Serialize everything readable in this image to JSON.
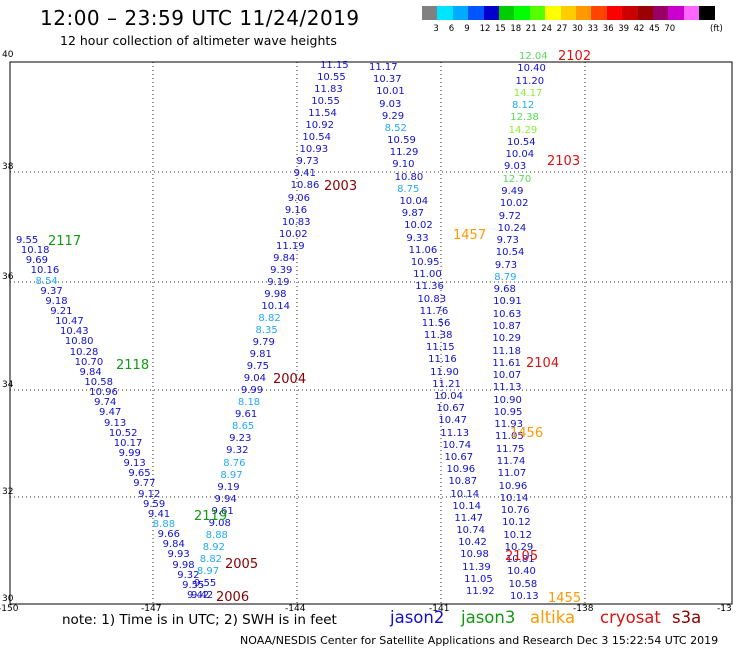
{
  "title": "12:00 – 23:59 UTC 11/24/2019",
  "subtitle": "12 hour collection of altimeter wave heights",
  "footer": {
    "note": "note: 1) Time is in UTC; 2) SWH is in feet",
    "credit": "NOAA/NESDIS Center for Satellite Applications and Research     Dec  3 15:22:54 UTC 2019"
  },
  "satellites": [
    {
      "name": "jason2",
      "color": "#1111cc"
    },
    {
      "name": "jason3",
      "color": "#119911"
    },
    {
      "name": "altika",
      "color": "#ff9900"
    },
    {
      "name": "cryosat",
      "color": "#dd1111"
    },
    {
      "name": "s3a",
      "color": "#880000"
    }
  ],
  "colorbar": {
    "unit": "(ft)",
    "colors": [
      "#808080",
      "#00e5ff",
      "#00aaff",
      "#0055ff",
      "#0000cc",
      "#00cc00",
      "#00ff00",
      "#55ff00",
      "#ffff00",
      "#ffcc00",
      "#ff9900",
      "#ff4400",
      "#ff0000",
      "#cc0000",
      "#990000",
      "#990066",
      "#cc00cc",
      "#ff66ff",
      "#000000"
    ],
    "labels": [
      "3",
      "6",
      "9",
      "12",
      "15",
      "18",
      "21",
      "24",
      "27",
      "30",
      "33",
      "36",
      "39",
      "42",
      "45",
      "70"
    ]
  },
  "axes": {
    "x_ticks": [
      "-150",
      "-147",
      "-144",
      "-141",
      "-138",
      "-13"
    ],
    "y_ticks": [
      "40",
      "38",
      "36",
      "34",
      "32",
      "30"
    ]
  },
  "time_labels": [
    {
      "text": "2102",
      "color": "#dd1111"
    },
    {
      "text": "2103",
      "color": "#dd1111"
    },
    {
      "text": "2104",
      "color": "#dd1111"
    },
    {
      "text": "2105",
      "color": "#dd1111"
    },
    {
      "text": "2117",
      "color": "#119911"
    },
    {
      "text": "2118",
      "color": "#119911"
    },
    {
      "text": "2119",
      "color": "#119911"
    },
    {
      "text": "2003",
      "color": "#880000"
    },
    {
      "text": "2004",
      "color": "#880000"
    },
    {
      "text": "2005",
      "color": "#880000"
    },
    {
      "text": "2006",
      "color": "#880000"
    },
    {
      "text": "1457",
      "color": "#ff9900"
    },
    {
      "text": "1456",
      "color": "#ff9900"
    },
    {
      "text": "1455",
      "color": "#ff9900"
    }
  ],
  "tracks": [
    {
      "id": "track-2117-2119",
      "values": [
        "9.55",
        "10.18",
        "9.69",
        "10.16",
        "8.54",
        "9.37",
        "9.18",
        "9.21",
        "10.47",
        "10.43",
        "10.80",
        "10.28",
        "10.70",
        "9.84",
        "10.58",
        "10.96",
        "9.74",
        "9.47",
        "9.13",
        "10.52",
        "10.17",
        "9.99",
        "9.13",
        "9.65",
        "9.77",
        "9.12",
        "9.59",
        "9.41",
        "8.88",
        "9.66",
        "9.84",
        "9.93",
        "9.98",
        "9.32",
        "9.55",
        "9.42"
      ]
    },
    {
      "id": "track-2003-2006",
      "values": [
        "11.15",
        "10.55",
        "11.83",
        "10.55",
        "11.54",
        "10.92",
        "10.54",
        "10.93",
        "9.73",
        "9.41",
        "10.86",
        "9.06",
        "9.16",
        "10.83",
        "10.02",
        "11.19",
        "9.84",
        "9.39",
        "9.19",
        "9.98",
        "10.14",
        "8.82",
        "8.35",
        "9.79",
        "9.81",
        "9.75",
        "9.04",
        "9.99",
        "8.18",
        "9.61",
        "8.65",
        "9.23",
        "9.32",
        "8.76",
        "8.97",
        "9.19",
        "9.94",
        "9.61",
        "9.08",
        "8.88",
        "8.92",
        "8.82",
        "8.97",
        "9.55",
        "9.42"
      ]
    },
    {
      "id": "track-1455-1457",
      "values": [
        "11.17",
        "10.37",
        "10.01",
        "9.03",
        "9.29",
        "8.52",
        "10.59",
        "11.29",
        "9.10",
        "10.80",
        "8.75",
        "10.04",
        "9.87",
        "10.02",
        "9.33",
        "11.06",
        "10.95",
        "11.00",
        "11.36",
        "10.83",
        "11.76",
        "11.56",
        "11.38",
        "11.15",
        "11.16",
        "11.90",
        "11.21",
        "10.04",
        "10.67",
        "10.47",
        "11.13",
        "10.74",
        "10.67",
        "10.96",
        "10.87",
        "10.14",
        "10.14",
        "11.47",
        "10.74",
        "10.42",
        "10.98",
        "11.39",
        "11.05",
        "11.92"
      ]
    },
    {
      "id": "track-2102-2105",
      "values": [
        "12.04",
        "10.40",
        "11.20",
        "14.17",
        "8.12",
        "12.38",
        "14.29",
        "10.54",
        "10.04",
        "9.03",
        "12.70",
        "9.49",
        "10.02",
        "9.72",
        "10.24",
        "9.73",
        "10.54",
        "9.73",
        "8.79",
        "9.68",
        "10.91",
        "10.63",
        "10.87",
        "10.29",
        "11.18",
        "11.61",
        "10.07",
        "11.13",
        "10.90",
        "10.95",
        "11.93",
        "11.05",
        "11.75",
        "11.74",
        "11.07",
        "10.96",
        "10.14",
        "10.76",
        "10.12",
        "10.12",
        "10.29",
        "10.81",
        "10.40",
        "10.58",
        "10.13"
      ]
    }
  ]
}
